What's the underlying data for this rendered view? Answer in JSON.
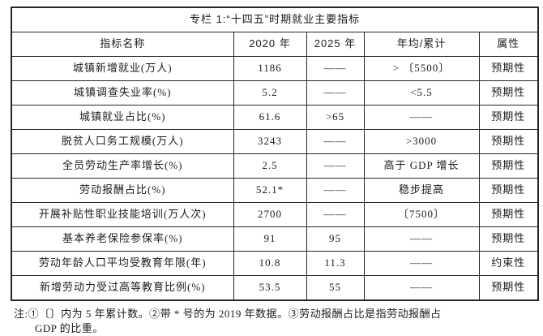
{
  "title": "专栏 1:“十四五”时期就业主要指标",
  "table": {
    "columns": [
      "指标名称",
      "2020 年",
      "2025 年",
      "年均/累计",
      "属性"
    ],
    "rows": [
      [
        "城镇新增就业(万人)",
        "1186",
        "——",
        "> 〔5500〕",
        "预期性"
      ],
      [
        "城镇调查失业率(%)",
        "5.2",
        "——",
        "<5.5",
        "预期性"
      ],
      [
        "城镇就业占比(%)",
        "61.6",
        ">65",
        "——",
        "预期性"
      ],
      [
        "脱贫人口务工规模(万人)",
        "3243",
        "——",
        ">3000",
        "预期性"
      ],
      [
        "全员劳动生产率增长(%)",
        "2.5",
        "——",
        "高于 GDP 增长",
        "预期性"
      ],
      [
        "劳动报酬占比(%)",
        "52.1*",
        "——",
        "稳步提高",
        "预期性"
      ],
      [
        "开展补贴性职业技能培训(万人次)",
        "2700",
        "——",
        "〔7500〕",
        "预期性"
      ],
      [
        "基本养老保险参保率(%)",
        "91",
        "95",
        "——",
        "预期性"
      ],
      [
        "劳动年龄人口平均受教育年限(年)",
        "10.8",
        "11.3",
        "——",
        "约束性"
      ],
      [
        "新增劳动力受过高等教育比例(%)",
        "53.5",
        "55",
        "——",
        "预期性"
      ]
    ],
    "dash": "——"
  },
  "note": {
    "line1": "注:①〔〕内为 5 年累计数。②带 * 号的为 2019 年数据。③劳动报酬占比是指劳动报酬占",
    "line2": "GDP 的比重。"
  }
}
